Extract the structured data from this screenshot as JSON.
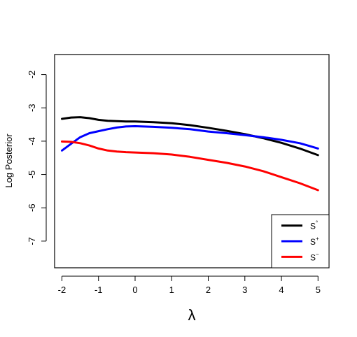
{
  "chart_data": {
    "type": "line",
    "xlabel": "λ",
    "ylabel": "Log Posterior",
    "xlim": [
      -2.2,
      5.3
    ],
    "ylim": [
      -7.8,
      -1.4
    ],
    "xticks": [
      -2,
      -1,
      0,
      1,
      2,
      3,
      4,
      5
    ],
    "yticks": [
      -7,
      -6,
      -5,
      -4,
      -3,
      -2
    ],
    "xtick_labels": [
      "-2",
      "-1",
      "0",
      "1",
      "2",
      "3",
      "4",
      "5"
    ],
    "ytick_labels": [
      "-7",
      "-6",
      "-5",
      "-4",
      "-3",
      "-2"
    ],
    "grid": false,
    "legend_position": "bottom-right",
    "series": [
      {
        "name": "S°",
        "label_base": "S",
        "label_sup": "°",
        "color": "#000000",
        "x": [
          -2,
          -1.75,
          -1.5,
          -1.25,
          -1,
          -0.75,
          -0.5,
          -0.25,
          0,
          0.5,
          1,
          1.5,
          2,
          2.5,
          3,
          3.5,
          4,
          4.5,
          5
        ],
        "y": [
          -3.33,
          -3.29,
          -3.28,
          -3.31,
          -3.36,
          -3.39,
          -3.4,
          -3.41,
          -3.41,
          -3.43,
          -3.46,
          -3.52,
          -3.6,
          -3.69,
          -3.79,
          -3.91,
          -4.05,
          -4.22,
          -4.42
        ]
      },
      {
        "name": "S⁺",
        "label_base": "S",
        "label_sup": "+",
        "color": "#0000ff",
        "x": [
          -2,
          -1.75,
          -1.5,
          -1.25,
          -1,
          -0.75,
          -0.5,
          -0.25,
          0,
          0.5,
          1,
          1.5,
          2,
          2.5,
          3,
          3.5,
          4,
          4.5,
          4.75,
          5
        ],
        "y": [
          -4.28,
          -4.08,
          -3.88,
          -3.76,
          -3.7,
          -3.64,
          -3.59,
          -3.56,
          -3.55,
          -3.57,
          -3.6,
          -3.64,
          -3.71,
          -3.76,
          -3.82,
          -3.88,
          -3.96,
          -4.06,
          -4.14,
          -4.22
        ]
      },
      {
        "name": "S⁻",
        "label_base": "S",
        "label_sup": "−",
        "color": "#ff0000",
        "x": [
          -2,
          -1.75,
          -1.5,
          -1.25,
          -1,
          -0.75,
          -0.5,
          -0.25,
          0,
          0.5,
          1,
          1.5,
          2,
          2.5,
          3,
          3.5,
          4,
          4.5,
          5
        ],
        "y": [
          -4.01,
          -4.02,
          -4.06,
          -4.13,
          -4.22,
          -4.28,
          -4.31,
          -4.33,
          -4.34,
          -4.36,
          -4.4,
          -4.47,
          -4.56,
          -4.65,
          -4.76,
          -4.9,
          -5.08,
          -5.26,
          -5.47
        ]
      }
    ]
  }
}
